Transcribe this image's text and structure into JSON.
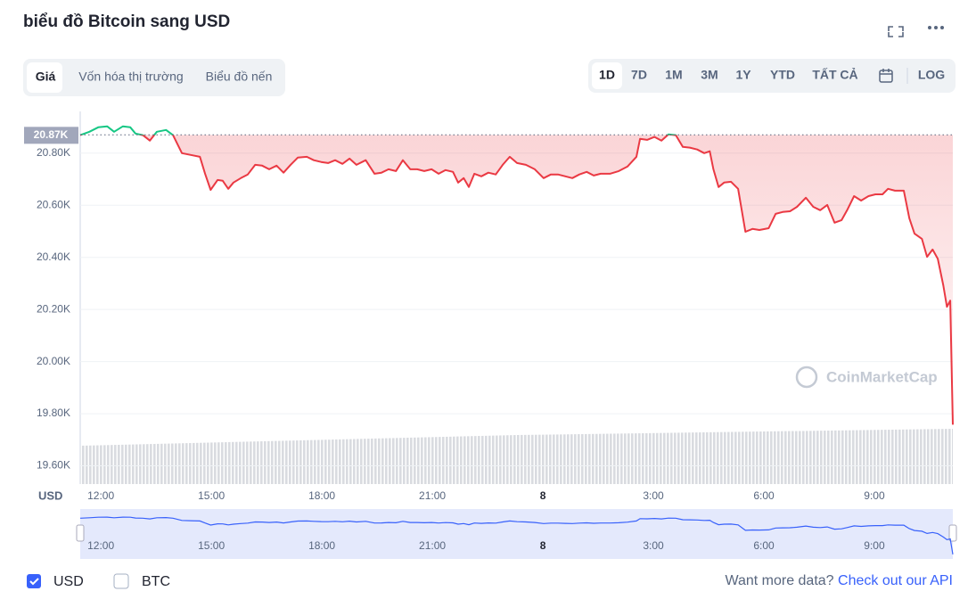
{
  "ui": {
    "tabs": [
      "Giá",
      "Vốn hóa thị trường",
      "Biểu đồ nến"
    ],
    "ranges": [
      "1D",
      "7D",
      "1M",
      "3M",
      "1Y",
      "YTD",
      "TẤT CẢ"
    ],
    "log": "LOG",
    "watermark": "CoinMarketCap",
    "other_currency": "BTC",
    "footer_text": "Want more data?",
    "footer_link": "Check out our API"
  },
  "chart_data": {
    "type": "line",
    "title": "biểu đồ Bitcoin sang USD",
    "y_label": "USD",
    "color_up": "#16c784",
    "color_down": "#ea3943",
    "reference": {
      "value": 20870,
      "label": "20.87K"
    },
    "grid": true,
    "xlim": [
      11.44,
      35.13
    ],
    "xticks": [
      {
        "value": 12,
        "label": "12:00"
      },
      {
        "value": 15,
        "label": "15:00"
      },
      {
        "value": 18,
        "label": "18:00"
      },
      {
        "value": 21,
        "label": "21:00"
      },
      {
        "value": 24,
        "label": "8"
      },
      {
        "value": 27,
        "label": "3:00"
      },
      {
        "value": 30,
        "label": "6:00"
      },
      {
        "value": 33,
        "label": "9:00"
      }
    ],
    "ylim": [
      19530,
      20960
    ],
    "yticks": [
      {
        "value": 19600,
        "label": "19.60K"
      },
      {
        "value": 19800,
        "label": "19.80K"
      },
      {
        "value": 20000,
        "label": "20.00K"
      },
      {
        "value": 20200,
        "label": "20.20K"
      },
      {
        "value": 20400,
        "label": "20.40K"
      },
      {
        "value": 20600,
        "label": "20.60K"
      },
      {
        "value": 20800,
        "label": "20.80K"
      }
    ],
    "x": [
      11.44,
      11.69,
      11.93,
      12.17,
      12.36,
      12.6,
      12.8,
      12.94,
      13.14,
      13.33,
      13.52,
      13.77,
      13.96,
      14.2,
      14.44,
      14.69,
      14.83,
      14.98,
      15.17,
      15.31,
      15.46,
      15.6,
      15.8,
      15.99,
      16.19,
      16.38,
      16.57,
      16.77,
      16.96,
      17.15,
      17.35,
      17.59,
      17.78,
      17.98,
      18.17,
      18.36,
      18.56,
      18.75,
      18.94,
      19.19,
      19.43,
      19.62,
      19.81,
      20.01,
      20.2,
      20.4,
      20.59,
      20.78,
      20.98,
      21.17,
      21.36,
      21.56,
      21.7,
      21.85,
      21.99,
      22.14,
      22.33,
      22.52,
      22.72,
      22.91,
      23.1,
      23.3,
      23.54,
      23.78,
      24.02,
      24.22,
      24.41,
      24.61,
      24.8,
      24.99,
      25.19,
      25.38,
      25.57,
      25.82,
      26.06,
      26.3,
      26.54,
      26.64,
      26.83,
      27.03,
      27.22,
      27.41,
      27.61,
      27.8,
      27.99,
      28.19,
      28.38,
      28.53,
      28.63,
      28.77,
      28.92,
      29.11,
      29.3,
      29.5,
      29.69,
      29.88,
      30.13,
      30.32,
      30.51,
      30.71,
      30.9,
      31.14,
      31.34,
      31.53,
      31.72,
      31.92,
      32.11,
      32.26,
      32.45,
      32.64,
      32.84,
      33.03,
      33.22,
      33.37,
      33.56,
      33.8,
      33.95,
      34.09,
      34.29,
      34.43,
      34.58,
      34.72,
      34.87,
      34.97,
      35.06,
      35.13
    ],
    "series": [
      {
        "name": "USD",
        "values": [
          20869,
          20882,
          20899,
          20903,
          20882,
          20903,
          20899,
          20875,
          20869,
          20848,
          20882,
          20889,
          20869,
          20800,
          20793,
          20786,
          20721,
          20659,
          20697,
          20694,
          20663,
          20687,
          20704,
          20718,
          20755,
          20752,
          20738,
          20752,
          20725,
          20755,
          20783,
          20786,
          20773,
          20766,
          20762,
          20773,
          20759,
          20779,
          20755,
          20773,
          20721,
          20725,
          20738,
          20731,
          20773,
          20738,
          20738,
          20731,
          20738,
          20721,
          20735,
          20728,
          20687,
          20704,
          20670,
          20721,
          20711,
          20725,
          20718,
          20755,
          20786,
          20762,
          20755,
          20738,
          20704,
          20718,
          20718,
          20711,
          20704,
          20718,
          20728,
          20714,
          20721,
          20721,
          20731,
          20749,
          20786,
          20855,
          20851,
          20862,
          20848,
          20872,
          20869,
          20824,
          20821,
          20814,
          20800,
          20807,
          20738,
          20670,
          20687,
          20690,
          20663,
          20498,
          20509,
          20505,
          20512,
          20567,
          20574,
          20577,
          20594,
          20629,
          20594,
          20581,
          20601,
          20533,
          20543,
          20581,
          20635,
          20618,
          20635,
          20642,
          20642,
          20663,
          20656,
          20656,
          20550,
          20491,
          20471,
          20402,
          20430,
          20395,
          20293,
          20210,
          20234,
          19758
        ]
      }
    ]
  }
}
